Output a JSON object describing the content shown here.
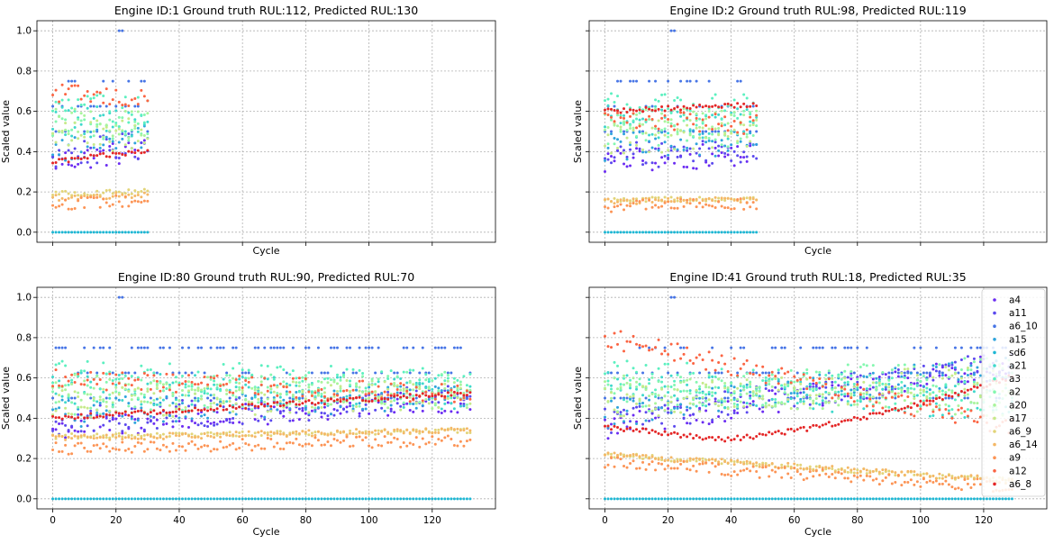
{
  "chart_data": [
    {
      "type": "scatter",
      "title": "Engine ID:1  Ground truth RUL:112, Predicted RUL:130",
      "xlabel": "Cycle",
      "ylabel": "Scaled value",
      "xlim": [
        -5,
        140
      ],
      "ylim": [
        -0.05,
        1.05
      ],
      "xticks": [
        0,
        20,
        40,
        60,
        80,
        100,
        120
      ],
      "yticks": [
        0.0,
        0.2,
        0.4,
        0.6,
        0.8,
        1.0
      ],
      "show_x_tick_labels": false,
      "show_y_tick_labels": true,
      "show_xlabel": true,
      "show_ylabel": true,
      "grid": true,
      "n_cycles": 31
    },
    {
      "type": "scatter",
      "title": "Engine ID:2  Ground truth RUL:98, Predicted RUL:119",
      "xlabel": "Cycle",
      "ylabel": "Scaled value",
      "xlim": [
        -5,
        140
      ],
      "ylim": [
        -0.05,
        1.05
      ],
      "xticks": [
        0,
        20,
        40,
        60,
        80,
        100,
        120
      ],
      "yticks": [
        0.0,
        0.2,
        0.4,
        0.6,
        0.8,
        1.0
      ],
      "show_x_tick_labels": false,
      "show_y_tick_labels": false,
      "show_xlabel": true,
      "show_ylabel": true,
      "grid": true,
      "n_cycles": 49
    },
    {
      "type": "scatter",
      "title": "Engine ID:80  Ground truth RUL:90, Predicted RUL:70",
      "xlabel": "Cycle",
      "ylabel": "Scaled value",
      "xlim": [
        -5,
        140
      ],
      "ylim": [
        -0.05,
        1.05
      ],
      "xticks": [
        0,
        20,
        40,
        60,
        80,
        100,
        120
      ],
      "yticks": [
        0.0,
        0.2,
        0.4,
        0.6,
        0.8,
        1.0
      ],
      "show_x_tick_labels": true,
      "show_y_tick_labels": true,
      "show_xlabel": true,
      "show_ylabel": true,
      "grid": true,
      "n_cycles": 133
    },
    {
      "type": "scatter",
      "title": "Engine ID:41  Ground truth RUL:18, Predicted RUL:35",
      "xlabel": "Cycle",
      "ylabel": "Scaled value",
      "xlim": [
        -5,
        140
      ],
      "ylim": [
        -0.05,
        1.05
      ],
      "xticks": [
        0,
        20,
        40,
        60,
        80,
        100,
        120
      ],
      "yticks": [
        0.0,
        0.2,
        0.4,
        0.6,
        0.8,
        1.0
      ],
      "show_x_tick_labels": true,
      "show_y_tick_labels": false,
      "show_xlabel": true,
      "show_ylabel": true,
      "grid": true,
      "n_cycles": 130,
      "legend": true,
      "legend_position": "top-right"
    }
  ],
  "series": [
    {
      "name": "a4",
      "color": "#6b2cf2"
    },
    {
      "name": "a11",
      "color": "#5b49ee"
    },
    {
      "name": "a6_10",
      "color": "#4775e6"
    },
    {
      "name": "a15",
      "color": "#2fa4dc"
    },
    {
      "name": "sd6",
      "color": "#1eb7d4"
    },
    {
      "name": "a21",
      "color": "#3fd8cc"
    },
    {
      "name": "a3",
      "color": "#5cf0c0"
    },
    {
      "name": "a2",
      "color": "#85f7b0"
    },
    {
      "name": "a20",
      "color": "#a9f49c"
    },
    {
      "name": "a17",
      "color": "#c6ea8a"
    },
    {
      "name": "a6_9",
      "color": "#e2d478"
    },
    {
      "name": "a6_14",
      "color": "#f4b866"
    },
    {
      "name": "a9",
      "color": "#fc9455"
    },
    {
      "name": "a12",
      "color": "#fb6442"
    },
    {
      "name": "a6_8",
      "color": "#e42626"
    }
  ]
}
